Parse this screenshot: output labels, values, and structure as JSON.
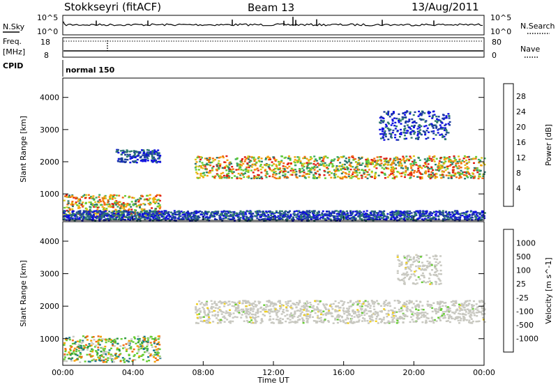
{
  "header": {
    "station": "Stokkseyri (fitACF)",
    "beam": "Beam 13",
    "date": "13/Aug/2011"
  },
  "strips": {
    "nsky_label": "N.Sky",
    "nsky_top": "10^5",
    "nsky_bottom": "10^0",
    "nsearch_label": "N.Search",
    "nsearch_top": "10^5",
    "nsearch_bottom": "10^0",
    "freq_label": "Freq.",
    "freq_unit": "[MHz]",
    "freq_top": "18",
    "freq_bottom": "8",
    "nave_label": "Nave",
    "nave_top": "80",
    "nave_bottom": "0",
    "cpid_label": "CPID",
    "cpid_value": "normal 150"
  },
  "chart_data": [
    {
      "type": "heatmap",
      "panel": "power",
      "ylabel": "Slant Range [km]",
      "ylim": [
        180,
        4600
      ],
      "y_ticks": [
        1000,
        2000,
        3000,
        4000
      ],
      "x_ticks": [
        "00:00",
        "04:00",
        "08:00",
        "12:00",
        "16:00",
        "20:00",
        "00:00"
      ],
      "colorbar": {
        "label": "Power [dB]",
        "ticks": [
          "4",
          "8",
          "12",
          "16",
          "20",
          "24",
          "28"
        ],
        "colors": [
          "#1010e0",
          "#1f3f9f",
          "#2e7a6e",
          "#3cae5e",
          "#66cc33",
          "#d8c81a",
          "#f4a20a",
          "#f26b10",
          "#e01a12",
          "#c80000"
        ]
      },
      "echo_regions": [
        {
          "t_start": 3.0,
          "t_end": 5.5,
          "range_start": 2000,
          "range_end": 2400,
          "level": "low"
        },
        {
          "t_start": 7.5,
          "t_end": 24.0,
          "range_start": 1500,
          "range_end": 2200,
          "level": "high"
        },
        {
          "t_start": 0.0,
          "t_end": 5.5,
          "range_start": 300,
          "range_end": 1000,
          "level": "high"
        },
        {
          "t_start": 0.0,
          "t_end": 24.0,
          "range_start": 200,
          "range_end": 500,
          "level": "low"
        },
        {
          "t_start": 18.0,
          "t_end": 22.0,
          "range_start": 2700,
          "range_end": 3600,
          "level": "low"
        }
      ]
    },
    {
      "type": "heatmap",
      "panel": "velocity",
      "ylabel": "Slant Range [km]",
      "xlabel": "Time UT",
      "ylim": [
        180,
        4600
      ],
      "y_ticks": [
        1000,
        2000,
        3000,
        4000
      ],
      "x_ticks": [
        "00:00",
        "04:00",
        "08:00",
        "12:00",
        "16:00",
        "20:00",
        "00:00"
      ],
      "colorbar": {
        "label": "Velocity [m s^-1]",
        "ticks": [
          "1000",
          "500",
          "100",
          "25",
          "-25",
          "-100",
          "-500",
          "-1000"
        ],
        "colors": [
          "#1010d0",
          "#1f7a8a",
          "#2e9a40",
          "#66cc33",
          "#c8c8c0",
          "#f0d020",
          "#f4a000",
          "#f06a10",
          "#e01010"
        ]
      },
      "echo_regions": [
        {
          "t_start": 7.5,
          "t_end": 24.0,
          "range_start": 1500,
          "range_end": 2200,
          "velocity": "near-zero"
        },
        {
          "t_start": 0.0,
          "t_end": 5.5,
          "range_start": 300,
          "range_end": 1100,
          "velocity": "mixed"
        },
        {
          "t_start": 19.0,
          "t_end": 21.5,
          "range_start": 2700,
          "range_end": 3600,
          "velocity": "near-zero"
        }
      ]
    }
  ]
}
